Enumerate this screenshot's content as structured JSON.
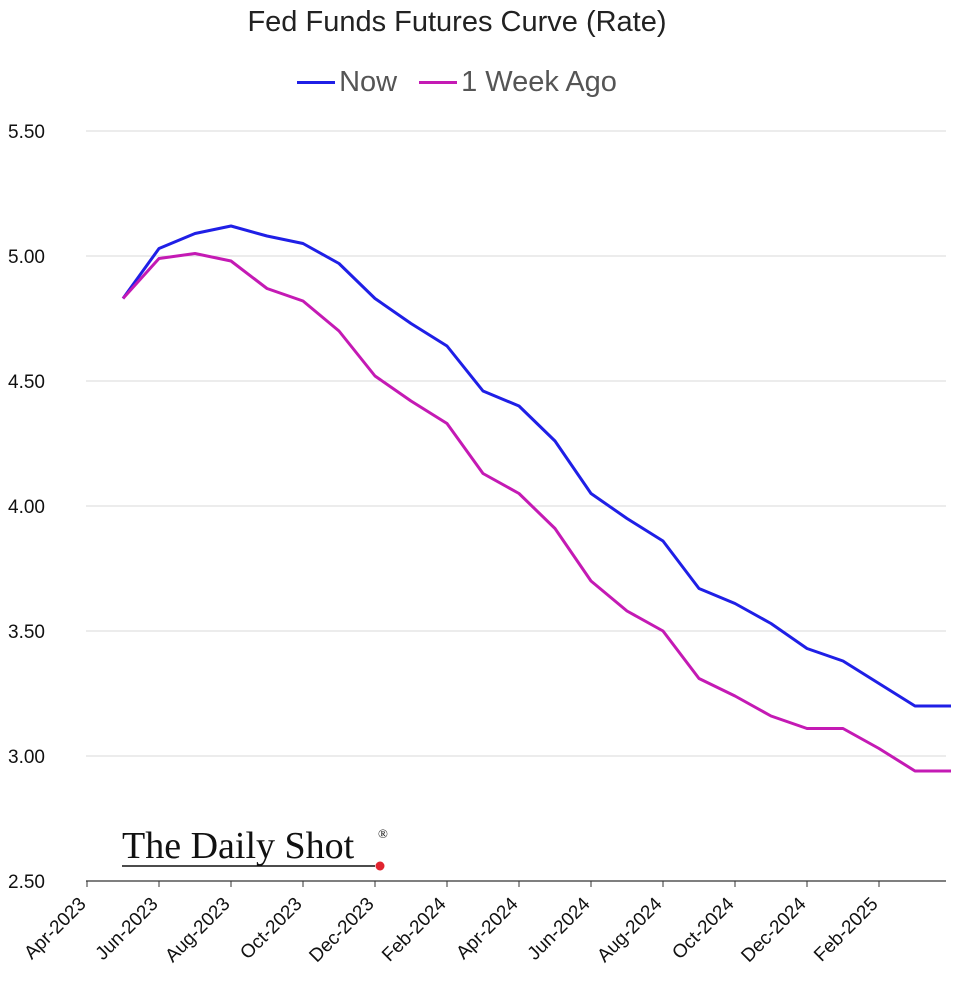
{
  "chart_data": {
    "type": "line",
    "title": "Fed Funds Futures Curve (Rate)",
    "xlabel": "",
    "ylabel": "",
    "ylim": [
      2.5,
      5.5
    ],
    "yticks": [
      "5.50",
      "5.00",
      "4.50",
      "4.00",
      "3.50",
      "3.00",
      "2.50"
    ],
    "ytick_values": [
      5.5,
      5.0,
      4.5,
      4.0,
      3.5,
      3.0,
      2.5
    ],
    "xticks": [
      "Apr-2023",
      "Jun-2023",
      "Aug-2023",
      "Oct-2023",
      "Dec-2023",
      "Feb-2024",
      "Apr-2024",
      "Jun-2024",
      "Aug-2024",
      "Oct-2024",
      "Dec-2024",
      "Feb-2025"
    ],
    "x": [
      "May-2023",
      "Jun-2023",
      "Jul-2023",
      "Aug-2023",
      "Sep-2023",
      "Oct-2023",
      "Nov-2023",
      "Dec-2023",
      "Jan-2024",
      "Feb-2024",
      "Mar-2024",
      "Apr-2024",
      "May-2024",
      "Jun-2024",
      "Jul-2024",
      "Aug-2024",
      "Sep-2024",
      "Oct-2024",
      "Nov-2024",
      "Dec-2024",
      "Jan-2025",
      "Feb-2025",
      "Mar-2025",
      "Apr-2025"
    ],
    "grid": true,
    "legend_position": "top-center",
    "series": [
      {
        "name": "Now",
        "color": "#1f1fe6",
        "values": [
          4.83,
          5.03,
          5.09,
          5.12,
          5.08,
          5.05,
          4.97,
          4.83,
          4.73,
          4.64,
          4.46,
          4.4,
          4.26,
          4.05,
          3.95,
          3.86,
          3.67,
          3.61,
          3.53,
          3.43,
          3.38,
          3.29,
          3.2,
          3.2
        ]
      },
      {
        "name": "1 Week Ago",
        "color": "#c41ab4",
        "values": [
          4.83,
          4.99,
          5.01,
          4.98,
          4.87,
          4.82,
          4.7,
          4.52,
          4.42,
          4.33,
          4.13,
          4.05,
          3.91,
          3.7,
          3.58,
          3.5,
          3.31,
          3.24,
          3.16,
          3.11,
          3.11,
          3.03,
          2.94,
          2.94
        ]
      }
    ]
  },
  "watermark": {
    "text": "The Daily Shot",
    "registered": "®",
    "dot_color": "#e0242f"
  }
}
